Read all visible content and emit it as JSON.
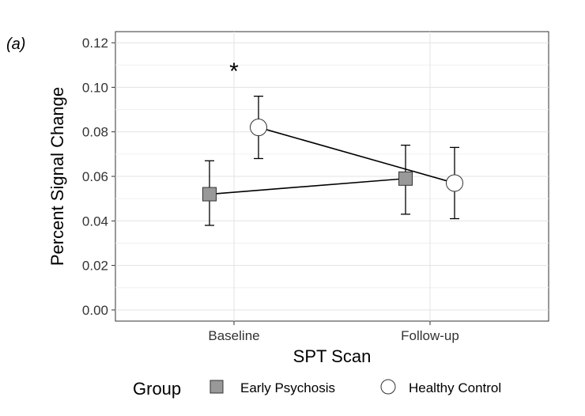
{
  "chart_data": {
    "type": "line",
    "panel_label": "(a)",
    "xlabel": "SPT Scan",
    "ylabel": "Percent Signal Change",
    "categories": [
      "Baseline",
      "Follow-up"
    ],
    "ylim": [
      -0.005,
      0.125
    ],
    "y_ticks": [
      "0.00",
      "0.02",
      "0.04",
      "0.06",
      "0.08",
      "0.10",
      "0.12"
    ],
    "grid": true,
    "legend": {
      "title": "Group",
      "placement": "bottom",
      "entries": [
        "Early Psychosis",
        "Healthy Control"
      ]
    },
    "series": [
      {
        "name": "Early Psychosis",
        "marker": "square",
        "color": "#999999",
        "values": [
          0.052,
          0.059
        ],
        "lower": [
          0.038,
          0.043
        ],
        "upper": [
          0.067,
          0.074
        ]
      },
      {
        "name": "Healthy Control",
        "marker": "circle",
        "color": "#ffffff",
        "values": [
          0.082,
          0.057
        ],
        "lower": [
          0.068,
          0.041
        ],
        "upper": [
          0.096,
          0.073
        ]
      }
    ],
    "annotations": [
      {
        "text": "*",
        "category": "Baseline",
        "y": 0.108
      }
    ]
  }
}
